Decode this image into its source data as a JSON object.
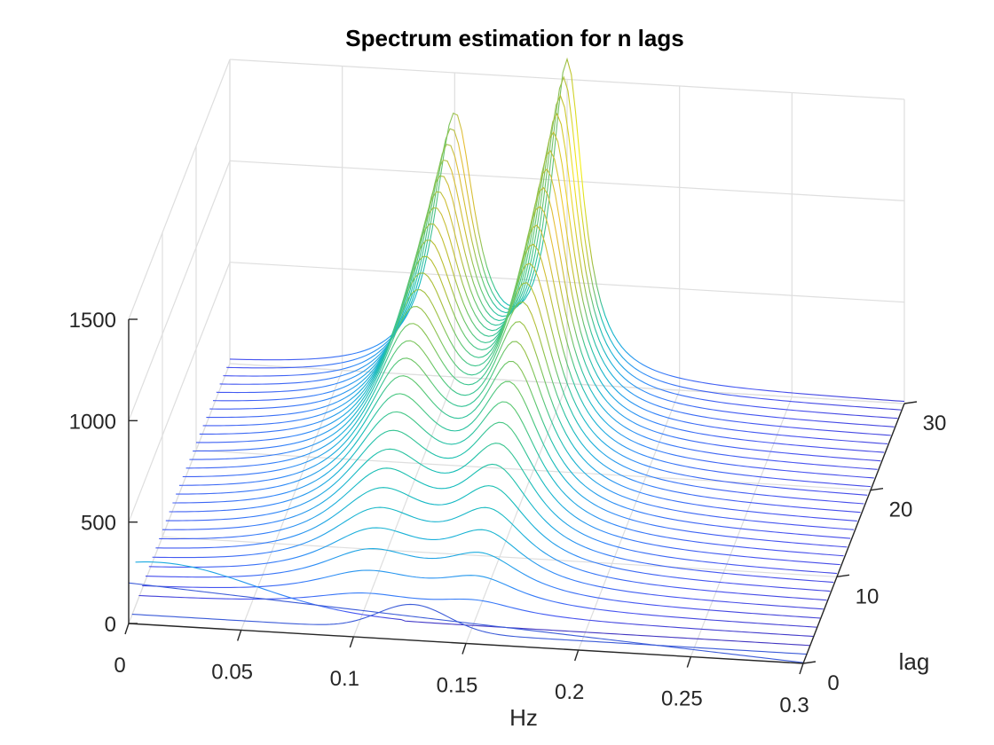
{
  "chart_data": {
    "type": "line",
    "subtype": "3d-waterfall",
    "title": "Spectrum estimation for n lags",
    "xlabel": "Hz",
    "ylabel": "lag",
    "zlabel": "",
    "xlim": [
      0,
      0.3
    ],
    "ylim": [
      0,
      30
    ],
    "zlim": [
      0,
      1500
    ],
    "x_ticks": [
      "0",
      "0.05",
      "0.1",
      "0.15",
      "0.2",
      "0.25",
      "0.3"
    ],
    "y_ticks": [
      "0",
      "10",
      "20",
      "30"
    ],
    "z_ticks": [
      "0",
      "500",
      "1000",
      "1500"
    ],
    "grid": true,
    "colormap": "parula",
    "lags": [
      0,
      30
    ],
    "peaks": [
      {
        "freq_hz": 0.1,
        "max_value": 1260,
        "width_hz": 0.011
      },
      {
        "freq_hz": 0.15,
        "max_value": 1540,
        "width_hz": 0.0085
      }
    ],
    "baseline_at_lag0_low_freq": 200,
    "first_lag_bump": {
      "freq_hz": 0.125,
      "value": 130
    },
    "colors": {
      "low": "#3e26a8",
      "high": "#f9fb0e"
    }
  }
}
